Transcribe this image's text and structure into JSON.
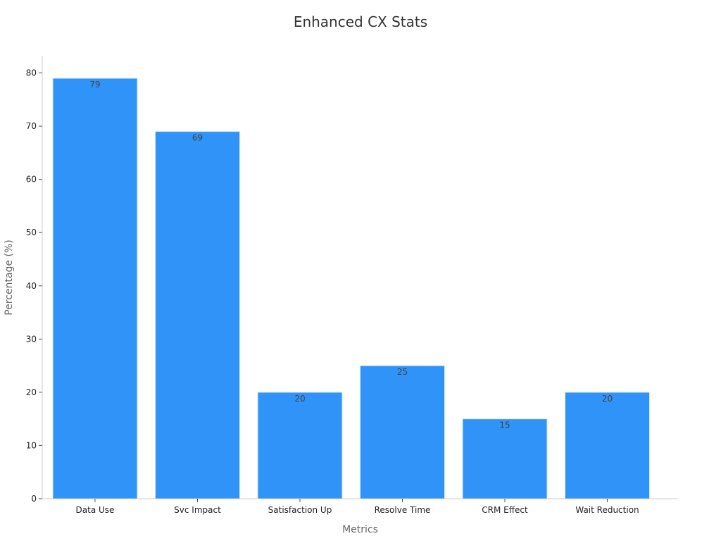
{
  "chart_data": {
    "type": "bar",
    "title": "Enhanced CX Stats",
    "xlabel": "Metrics",
    "ylabel": "Percentage (%)",
    "categories": [
      "Data Use",
      "Svc Impact",
      "Satisfaction Up",
      "Resolve Time",
      "CRM Effect",
      "Wait Reduction"
    ],
    "values": [
      79,
      69,
      20,
      25,
      15,
      20
    ],
    "ylim": [
      0,
      83
    ],
    "yticks": [
      0,
      10,
      20,
      30,
      40,
      50,
      60,
      70,
      80
    ],
    "grid": false,
    "legend": "none",
    "bar_color": "#2f93f8",
    "bar_edge_color": "#d6e9fd"
  }
}
